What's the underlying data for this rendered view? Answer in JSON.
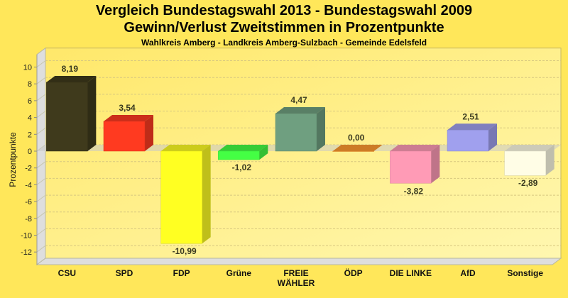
{
  "chart_data": {
    "type": "bar",
    "title": "Vergleich Bundestagswahl 2013 - Bundestagswahl 2009",
    "subtitle": "Gewinn/Verlust Zweitstimmen in Prozentpunkte",
    "subsubtitle": "Wahlkreis Amberg - Landkreis Amberg-Sulzbach - Gemeinde Edelsfeld",
    "xlabel": "",
    "ylabel": "Prozentpunkte",
    "ylim": [
      -13.5,
      11.5
    ],
    "yticks": [
      10,
      8,
      6,
      4,
      2,
      0,
      -2,
      -4,
      -6,
      -8,
      -10,
      -12
    ],
    "grid": true,
    "categories": [
      [
        "CSU"
      ],
      [
        "SPD"
      ],
      [
        "FDP"
      ],
      [
        "Grüne"
      ],
      [
        "FREIE",
        "WÄHLER"
      ],
      [
        "ÖDP"
      ],
      [
        "DIE LINKE"
      ],
      [
        "AfD"
      ],
      [
        "Sonstige"
      ]
    ],
    "values": [
      8.19,
      3.54,
      -10.99,
      -1.02,
      4.47,
      0.0,
      -3.82,
      2.51,
      -2.89
    ],
    "value_labels": [
      "8,19",
      "3,54",
      "-10,99",
      "-1,02",
      "4,47",
      "0,00",
      "-3,82",
      "2,51",
      "-2,89"
    ],
    "colors": [
      "#3f3a1c",
      "#ff3a20",
      "#ffff22",
      "#44ff44",
      "#6f9f80",
      "#ff9a30",
      "#ff9bb6",
      "#a0a0ee",
      "#fffde6"
    ]
  }
}
